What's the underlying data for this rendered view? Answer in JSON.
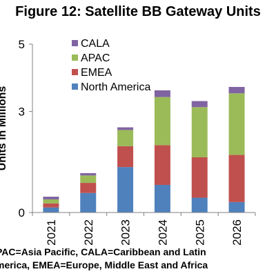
{
  "chart_data": {
    "type": "bar",
    "stacked": true,
    "title": "Figure 12: Satellite BB Gateway Units",
    "ylabel": "Units in Millions",
    "xlabel": "",
    "categories": [
      "2021",
      "2022",
      "2023",
      "2024",
      "2025",
      "2026"
    ],
    "yticks": [
      "0",
      "3",
      "5"
    ],
    "ylim": [
      0,
      5
    ],
    "legend_position": "top-left",
    "series": [
      {
        "name": "North America",
        "color": "#4f81bd",
        "values": [
          0.15,
          0.58,
          1.35,
          0.82,
          0.44,
          0.31
        ]
      },
      {
        "name": "EMEA",
        "color": "#c0504d",
        "values": [
          0.12,
          0.3,
          0.62,
          1.18,
          1.2,
          1.4
        ]
      },
      {
        "name": "APAC",
        "color": "#9bbb59",
        "values": [
          0.12,
          0.22,
          0.48,
          1.43,
          1.49,
          1.83
        ]
      },
      {
        "name": "CALA",
        "color": "#8064a2",
        "values": [
          0.08,
          0.07,
          0.08,
          0.2,
          0.18,
          0.19
        ]
      }
    ]
  },
  "footnote": {
    "line1": "PAC=Asia Pacific, CALA=Caribbean and Latin",
    "line2": "merica, EMEA=Europe, Middle East and Africa"
  }
}
